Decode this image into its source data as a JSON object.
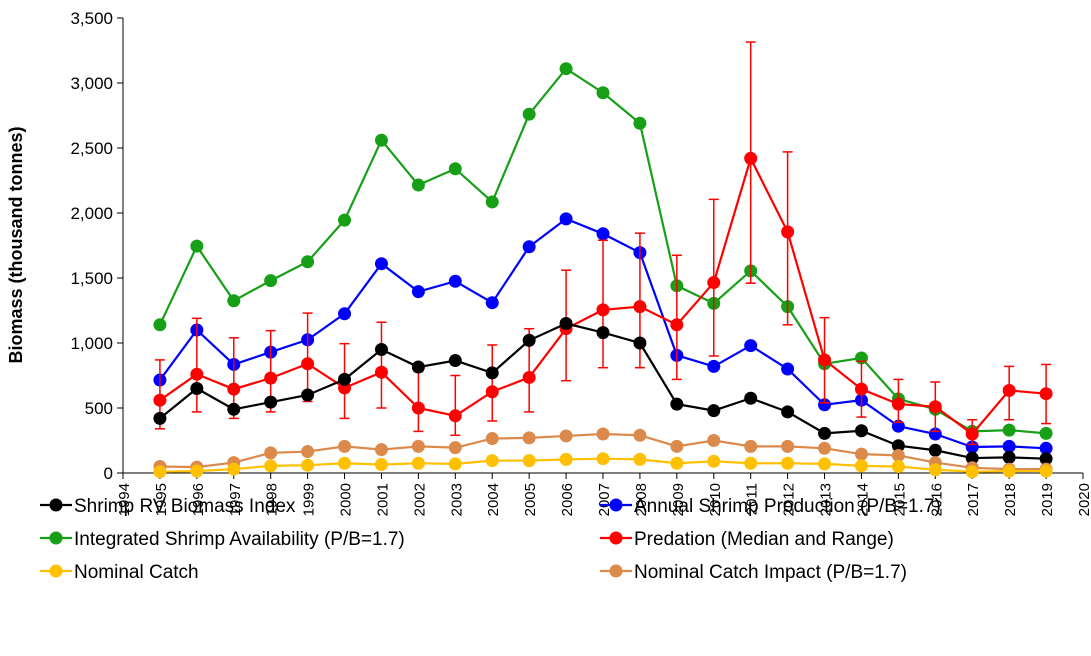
{
  "chart_data": {
    "type": "line",
    "y_label": "Biomass (thousand tonnes)",
    "x": [
      1995,
      1996,
      1997,
      1998,
      1999,
      2000,
      2001,
      2002,
      2003,
      2004,
      2005,
      2006,
      2007,
      2008,
      2009,
      2010,
      2011,
      2012,
      2013,
      2014,
      2015,
      2016,
      2017,
      2018,
      2019
    ],
    "xlim": [
      1994,
      2020
    ],
    "xticks": [
      1994,
      1995,
      1996,
      1997,
      1998,
      1999,
      2000,
      2001,
      2002,
      2003,
      2004,
      2005,
      2006,
      2007,
      2008,
      2009,
      2010,
      2011,
      2012,
      2013,
      2014,
      2015,
      2016,
      2017,
      2018,
      2019,
      2020
    ],
    "ylim": [
      0,
      3500
    ],
    "yticks": [
      0,
      500,
      {
        "value": 1000,
        "label": "1,000"
      },
      {
        "value": 1500,
        "label": "1,500"
      },
      {
        "value": 2000,
        "label": "2,000"
      },
      {
        "value": 2500,
        "label": "2,500"
      },
      {
        "value": 3000,
        "label": "3,000"
      },
      {
        "value": 3500,
        "label": "3,500"
      }
    ],
    "series": [
      {
        "name": "Shrimp RV Biomass Index",
        "color": "#000000",
        "values": [
          420,
          650,
          490,
          545,
          600,
          720,
          950,
          815,
          865,
          770,
          1020,
          1150,
          1080,
          1000,
          530,
          480,
          575,
          470,
          305,
          325,
          210,
          175,
          115,
          120,
          110
        ]
      },
      {
        "name": "Annual Shrimp Production (P/B=1.7)",
        "color": "#0000ff",
        "values": [
          715,
          1100,
          835,
          930,
          1025,
          1225,
          1610,
          1395,
          1475,
          1310,
          1740,
          1955,
          1840,
          1695,
          905,
          820,
          980,
          800,
          525,
          560,
          360,
          300,
          200,
          205,
          190
        ]
      },
      {
        "name": "Integrated Shrimp Availability (P/B=1.7)",
        "color": "#17a017",
        "values": [
          1140,
          1745,
          1325,
          1480,
          1625,
          1945,
          2560,
          2215,
          2340,
          2085,
          2760,
          3110,
          2925,
          2690,
          1440,
          1305,
          1555,
          1280,
          840,
          885,
          570,
          490,
          320,
          330,
          305
        ]
      },
      {
        "name": "Predation (Median and Range)",
        "color": "#ff0000",
        "values": [
          560,
          760,
          645,
          730,
          840,
          655,
          775,
          500,
          440,
          625,
          735,
          1110,
          1255,
          1280,
          1140,
          1465,
          2420,
          1855,
          870,
          645,
          530,
          510,
          300,
          635,
          610
        ],
        "low": [
          340,
          470,
          420,
          470,
          550,
          420,
          500,
          320,
          290,
          400,
          470,
          710,
          810,
          810,
          720,
          900,
          1460,
          1140,
          540,
          430,
          390,
          320,
          220,
          410,
          380
        ],
        "high": [
          870,
          1190,
          1040,
          1095,
          1230,
          995,
          1160,
          780,
          750,
          985,
          1110,
          1560,
          1790,
          1845,
          1675,
          2105,
          3315,
          2470,
          1195,
          860,
          720,
          700,
          410,
          820,
          835
        ]
      },
      {
        "name": "Nominal Catch",
        "color": "#ffc000",
        "values": [
          10,
          15,
          30,
          55,
          60,
          75,
          65,
          75,
          70,
          95,
          95,
          105,
          110,
          105,
          75,
          90,
          75,
          75,
          70,
          55,
          50,
          25,
          10,
          15,
          15
        ]
      },
      {
        "name": "Nominal Catch Impact (P/B=1.7)",
        "color": "#dc8a4c",
        "values": [
          50,
          45,
          80,
          155,
          165,
          205,
          180,
          205,
          195,
          265,
          270,
          285,
          300,
          290,
          205,
          250,
          205,
          205,
          190,
          145,
          135,
          80,
          40,
          30,
          30
        ]
      }
    ]
  }
}
